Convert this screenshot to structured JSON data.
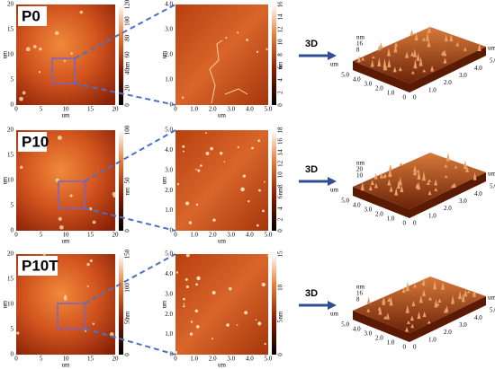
{
  "rows": [
    {
      "label": "P0",
      "arrow_label": "3D",
      "left": {
        "xticks": [
          "0",
          "5",
          "10",
          "15",
          "20"
        ],
        "yticks": [
          "0",
          "5",
          "10",
          "15",
          "20"
        ],
        "x_unit": "um",
        "y_unit": "um",
        "colorbar_ticks": [
          "0",
          "20",
          "40",
          "60",
          "80",
          "100",
          "120"
        ],
        "colorbar_unit": "nm"
      },
      "middle": {
        "xticks": [
          "0",
          "1.0",
          "2.0",
          "3.0",
          "4.0",
          "5.0"
        ],
        "yticks": [
          "0",
          "1.0",
          "2.0",
          "3.0",
          "4.0"
        ],
        "x_unit": "um",
        "y_unit": "um",
        "colorbar_ticks": [
          "0",
          "2",
          "4",
          "6",
          "8",
          "10",
          "12",
          "14",
          "16"
        ],
        "colorbar_unit": "nm"
      },
      "view3d": {
        "z_unit": "nm",
        "z_ticks": [
          "16",
          "8"
        ],
        "depth_ticks": [
          "0",
          "1.0",
          "2.0",
          "3.0",
          "4.0",
          "5.0"
        ],
        "width_ticks": [
          "0",
          "1.0",
          "2.0",
          "3.0",
          "4.0",
          "5.0"
        ],
        "depth_unit": "um",
        "width_unit": "um"
      }
    },
    {
      "label": "P10",
      "arrow_label": "3D",
      "left": {
        "xticks": [
          "0",
          "5",
          "10",
          "15",
          "20"
        ],
        "yticks": [
          "0",
          "5",
          "10",
          "15",
          "20"
        ],
        "x_unit": "um",
        "y_unit": "um",
        "colorbar_ticks": [
          "0",
          "50",
          "100"
        ],
        "colorbar_unit": "nm"
      },
      "middle": {
        "xticks": [
          "0",
          "1.0",
          "2.0",
          "3.0",
          "4.0",
          "5.0"
        ],
        "yticks": [
          "0",
          "1.0",
          "2.0",
          "3.0",
          "4.0",
          "5.0"
        ],
        "x_unit": "um",
        "y_unit": "um",
        "colorbar_ticks": [
          "0",
          "2",
          "4",
          "6",
          "8",
          "10",
          "12",
          "14",
          "16",
          "18"
        ],
        "colorbar_unit": "nm"
      },
      "view3d": {
        "z_unit": "nm",
        "z_ticks": [
          "20",
          "10"
        ],
        "depth_ticks": [
          "0",
          "1.0",
          "2.0",
          "3.0",
          "4.0",
          "5.0"
        ],
        "width_ticks": [
          "0",
          "1.0",
          "2.0",
          "3.0",
          "4.0",
          "5.0"
        ],
        "depth_unit": "um",
        "width_unit": "um"
      }
    },
    {
      "label": "P10T",
      "arrow_label": "3D",
      "left": {
        "xticks": [
          "0",
          "5",
          "10",
          "15",
          "20"
        ],
        "yticks": [
          "0",
          "5",
          "10",
          "15",
          "20"
        ],
        "x_unit": "um",
        "y_unit": "um",
        "colorbar_ticks": [
          "0",
          "50",
          "100",
          "150"
        ],
        "colorbar_unit": "nm"
      },
      "middle": {
        "xticks": [
          "0",
          "1.0",
          "2.0",
          "3.0",
          "4.0",
          "5.0"
        ],
        "yticks": [
          "0",
          "1.0",
          "2.0",
          "3.0",
          "4.0",
          "5.0"
        ],
        "x_unit": "um",
        "y_unit": "um",
        "colorbar_ticks": [
          "0",
          "5",
          "10",
          "15"
        ],
        "colorbar_unit": "nm"
      },
      "view3d": {
        "z_unit": "nm",
        "z_ticks": [
          "16",
          "8"
        ],
        "depth_ticks": [
          "0",
          "1.0",
          "2.0",
          "3.0",
          "4.0",
          "5.0"
        ],
        "width_ticks": [
          "0",
          "1.0",
          "2.0",
          "3.0",
          "4.0",
          "5.0"
        ],
        "depth_unit": "um",
        "width_unit": "um"
      }
    }
  ]
}
